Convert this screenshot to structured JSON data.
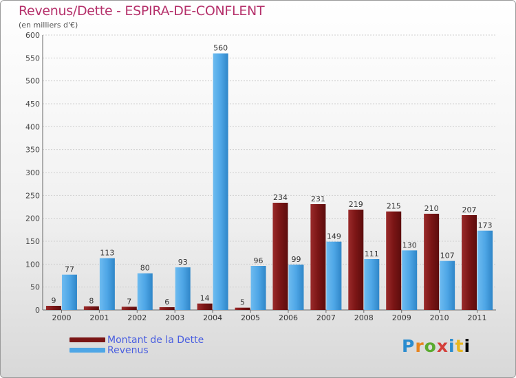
{
  "colors": {
    "dette": "#7a1515",
    "revenus": "#4ea6e6",
    "title": "#b5316b"
  },
  "logo_text": "Proxiti",
  "chart_data": {
    "type": "bar",
    "title": "Revenus/Dette - ESPIRA-DE-CONFLENT",
    "subtitle": "(en milliers d'€)",
    "xlabel": "",
    "ylabel": "",
    "ylim": [
      0,
      600
    ],
    "yticks": [
      0,
      50,
      100,
      150,
      200,
      250,
      300,
      350,
      400,
      450,
      500,
      550,
      600
    ],
    "categories": [
      "2000",
      "2001",
      "2002",
      "2003",
      "2004",
      "2005",
      "2006",
      "2007",
      "2008",
      "2009",
      "2010",
      "2011"
    ],
    "series": [
      {
        "name": "Montant de la Dette",
        "values": [
          9,
          8,
          7,
          6,
          14,
          5,
          234,
          231,
          219,
          215,
          210,
          207
        ]
      },
      {
        "name": "Revenus",
        "values": [
          77,
          113,
          80,
          93,
          560,
          96,
          99,
          149,
          111,
          130,
          107,
          173
        ]
      }
    ],
    "legend_position": "bottom-left"
  }
}
